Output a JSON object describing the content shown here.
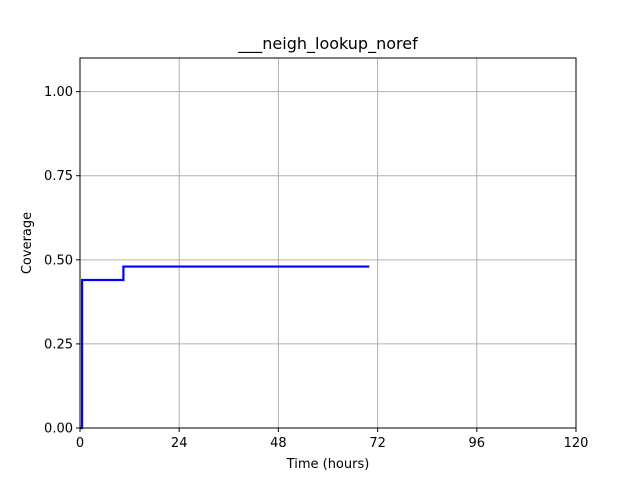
{
  "chart_data": {
    "type": "line",
    "title": "___neigh_lookup_noref",
    "xlabel": "Time (hours)",
    "ylabel": "Coverage",
    "xlim": [
      0,
      120
    ],
    "ylim": [
      0,
      1.1
    ],
    "xticks": [
      0,
      24,
      48,
      72,
      96,
      120
    ],
    "xtick_labels": [
      "0",
      "24",
      "48",
      "72",
      "96",
      "120"
    ],
    "yticks": [
      0,
      0.25,
      0.5,
      0.75,
      1.0
    ],
    "ytick_labels": [
      "0.00",
      "0.25",
      "0.50",
      "0.75",
      "1.00"
    ],
    "grid": true,
    "series": [
      {
        "color": "#0000ff",
        "drawstyle": "steps-post",
        "x": [
          0,
          0.5,
          10.5,
          70
        ],
        "y": [
          0,
          0.44,
          0.48,
          0.48
        ]
      }
    ]
  }
}
